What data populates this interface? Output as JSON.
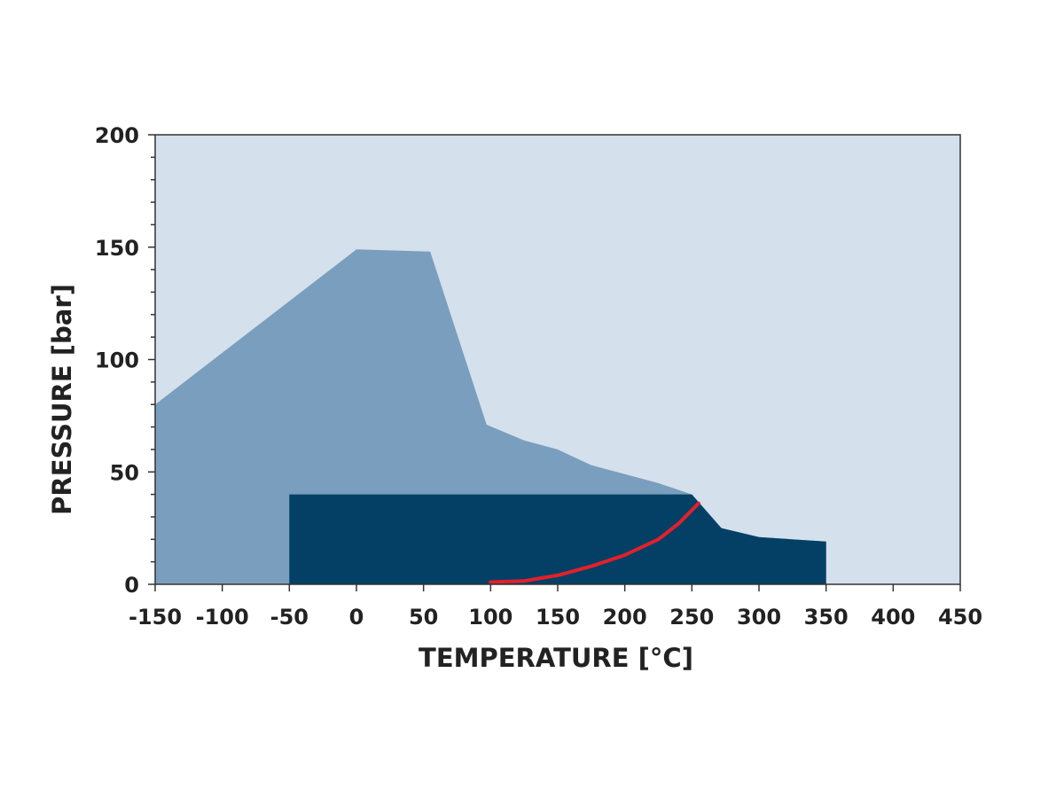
{
  "chart_data": {
    "type": "area",
    "title": "",
    "xlabel": "TEMPERATURE [°C]",
    "ylabel": "PRESSURE [bar]",
    "xlim": [
      -150,
      450
    ],
    "ylim": [
      0,
      200
    ],
    "x_ticks": [
      -150,
      -100,
      -50,
      0,
      50,
      100,
      150,
      200,
      250,
      300,
      350,
      400,
      450
    ],
    "x_tick_labels": [
      "-150",
      "-100",
      "-50",
      "0",
      "50",
      "100",
      "150",
      "200",
      "250",
      "300",
      "350",
      "400",
      "450"
    ],
    "y_ticks": [
      0,
      50,
      100,
      150,
      200
    ],
    "y_tick_labels": [
      "0",
      "50",
      "100",
      "150",
      "200"
    ],
    "y_minor_step": 10,
    "grid": false,
    "series": [
      {
        "kind": "area",
        "color": "#7a9ebd",
        "points": [
          [
            -150,
            80
          ],
          [
            0,
            149
          ],
          [
            55,
            148
          ],
          [
            97,
            71
          ],
          [
            125,
            64
          ],
          [
            150,
            60
          ],
          [
            175,
            53
          ],
          [
            200,
            49
          ],
          [
            225,
            45
          ],
          [
            250,
            40
          ],
          [
            272,
            25
          ],
          [
            300,
            21
          ],
          [
            350,
            19
          ],
          [
            350,
            0
          ],
          [
            -150,
            0
          ]
        ]
      },
      {
        "kind": "area",
        "color": "#044066",
        "points": [
          [
            -50,
            0
          ],
          [
            -50,
            40
          ],
          [
            250,
            40
          ],
          [
            272,
            25
          ],
          [
            300,
            21
          ],
          [
            350,
            19
          ],
          [
            350,
            0
          ]
        ]
      },
      {
        "kind": "line",
        "color": "#e3202a",
        "points": [
          [
            100,
            1
          ],
          [
            125,
            1.5
          ],
          [
            150,
            4
          ],
          [
            175,
            8
          ],
          [
            200,
            13
          ],
          [
            225,
            20
          ],
          [
            240,
            27
          ],
          [
            255,
            36
          ]
        ]
      }
    ],
    "colors": {
      "plot_background": "#d4e0ec",
      "axis": "#333333"
    }
  }
}
